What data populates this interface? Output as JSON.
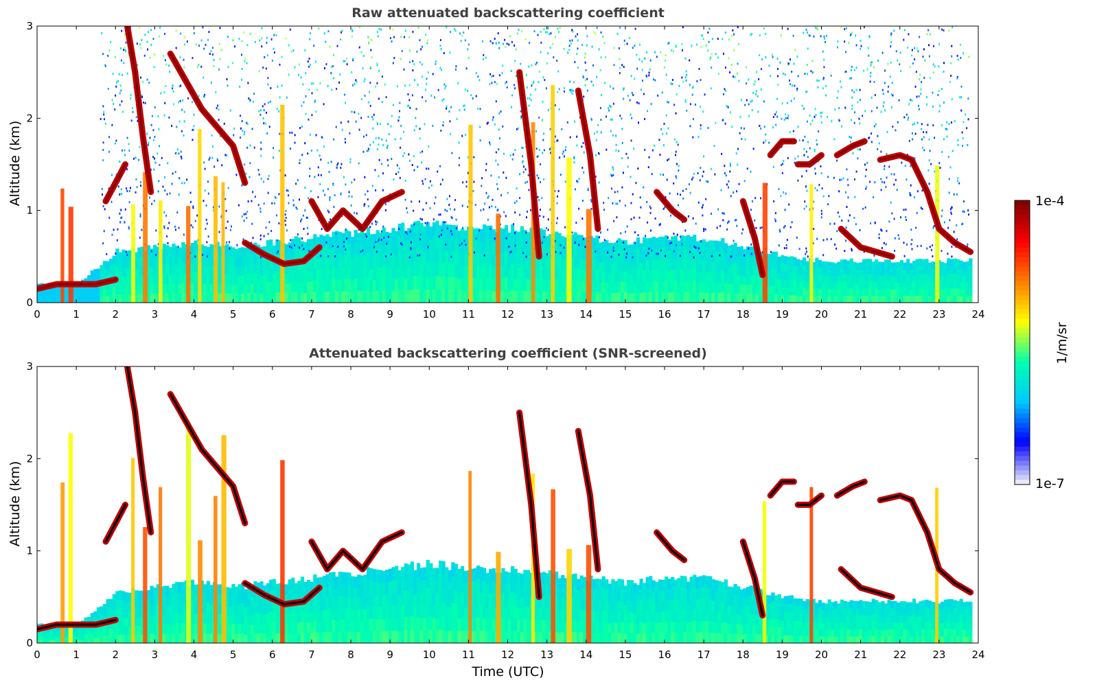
{
  "chart_data": [
    {
      "type": "heatmap",
      "title": "Raw attenuated backscattering coefficient",
      "xlabel": "",
      "ylabel": "Altitude (km)",
      "xlim": [
        0,
        24
      ],
      "ylim": [
        0,
        3
      ],
      "xticks": [
        "0",
        "1",
        "2",
        "3",
        "4",
        "5",
        "6",
        "7",
        "8",
        "9",
        "10",
        "11",
        "12",
        "13",
        "14",
        "15",
        "16",
        "17",
        "18",
        "19",
        "20",
        "21",
        "22",
        "23",
        "24"
      ],
      "yticks": [
        "0",
        "1",
        "2",
        "3"
      ],
      "screening": "none",
      "boundary_layer_top_km": [
        [
          0,
          0.2
        ],
        [
          1,
          0.2
        ],
        [
          2,
          0.55
        ],
        [
          3,
          0.6
        ],
        [
          4,
          0.65
        ],
        [
          5,
          0.6
        ],
        [
          6,
          0.65
        ],
        [
          7,
          0.7
        ],
        [
          8,
          0.75
        ],
        [
          9,
          0.8
        ],
        [
          10,
          0.85
        ],
        [
          11,
          0.8
        ],
        [
          12,
          0.8
        ],
        [
          13,
          0.75
        ],
        [
          14,
          0.7
        ],
        [
          15,
          0.65
        ],
        [
          16,
          0.7
        ],
        [
          17,
          0.7
        ],
        [
          18,
          0.6
        ],
        [
          19,
          0.5
        ],
        [
          20,
          0.45
        ],
        [
          21,
          0.45
        ],
        [
          22,
          0.45
        ],
        [
          23,
          0.45
        ],
        [
          23.8,
          0.45
        ]
      ],
      "cloud_layers": [
        {
          "points": [
            [
              0,
              0.15
            ],
            [
              0.5,
              0.2
            ],
            [
              1,
              0.2
            ],
            [
              1.5,
              0.2
            ],
            [
              2,
              0.25
            ]
          ]
        },
        {
          "points": [
            [
              1.75,
              1.1
            ],
            [
              2.0,
              1.3
            ],
            [
              2.25,
              1.5
            ]
          ]
        },
        {
          "points": [
            [
              2.3,
              3.0
            ],
            [
              2.5,
              2.5
            ],
            [
              2.7,
              1.8
            ],
            [
              2.9,
              1.2
            ]
          ]
        },
        {
          "points": [
            [
              3.4,
              2.7
            ],
            [
              3.8,
              2.4
            ],
            [
              4.2,
              2.1
            ],
            [
              4.6,
              1.9
            ],
            [
              5.0,
              1.7
            ],
            [
              5.3,
              1.3
            ]
          ]
        },
        {
          "points": [
            [
              5.3,
              0.65
            ],
            [
              5.8,
              0.52
            ],
            [
              6.3,
              0.42
            ],
            [
              6.8,
              0.45
            ],
            [
              7.2,
              0.6
            ]
          ]
        },
        {
          "points": [
            [
              7.0,
              1.1
            ],
            [
              7.4,
              0.8
            ],
            [
              7.8,
              1.0
            ],
            [
              8.3,
              0.8
            ],
            [
              8.8,
              1.1
            ],
            [
              9.3,
              1.2
            ]
          ]
        },
        {
          "points": [
            [
              12.3,
              2.5
            ],
            [
              12.6,
              1.5
            ],
            [
              12.8,
              0.5
            ]
          ]
        },
        {
          "points": [
            [
              13.8,
              2.3
            ],
            [
              14.1,
              1.6
            ],
            [
              14.3,
              0.8
            ]
          ]
        },
        {
          "points": [
            [
              15.8,
              1.2
            ],
            [
              16.2,
              1.0
            ],
            [
              16.5,
              0.9
            ]
          ]
        },
        {
          "points": [
            [
              18.0,
              1.1
            ],
            [
              18.3,
              0.7
            ],
            [
              18.5,
              0.3
            ]
          ]
        },
        {
          "points": [
            [
              18.7,
              1.6
            ],
            [
              19.0,
              1.75
            ],
            [
              19.3,
              1.75
            ]
          ]
        },
        {
          "points": [
            [
              19.4,
              1.5
            ],
            [
              19.7,
              1.5
            ],
            [
              20.0,
              1.6
            ]
          ]
        },
        {
          "points": [
            [
              20.4,
              1.6
            ],
            [
              20.8,
              1.7
            ],
            [
              21.1,
              1.75
            ]
          ]
        },
        {
          "points": [
            [
              21.5,
              1.55
            ],
            [
              22.0,
              1.6
            ],
            [
              22.3,
              1.55
            ],
            [
              22.7,
              1.2
            ],
            [
              23.0,
              0.8
            ],
            [
              23.4,
              0.65
            ],
            [
              23.8,
              0.55
            ]
          ]
        },
        {
          "points": [
            [
              20.5,
              0.8
            ],
            [
              21.0,
              0.6
            ],
            [
              21.4,
              0.55
            ],
            [
              21.8,
              0.5
            ]
          ]
        }
      ],
      "vertical_plumes_hours": [
        0.6,
        0.8,
        2.4,
        2.7,
        3.1,
        3.8,
        4.1,
        4.5,
        4.7,
        6.2,
        11.0,
        11.7,
        12.6,
        13.1,
        13.5,
        14.0,
        18.5,
        19.7,
        22.9
      ]
    },
    {
      "type": "heatmap",
      "title": "Attenuated backscattering coefficient (SNR-screened)",
      "xlabel": "Time (UTC)",
      "ylabel": "Altitude (km)",
      "xlim": [
        0,
        24
      ],
      "ylim": [
        0,
        3
      ],
      "xticks": [
        "0",
        "1",
        "2",
        "3",
        "4",
        "5",
        "6",
        "7",
        "8",
        "9",
        "10",
        "11",
        "12",
        "13",
        "14",
        "15",
        "16",
        "17",
        "18",
        "19",
        "20",
        "21",
        "22",
        "23",
        "24"
      ],
      "yticks": [
        "0",
        "1",
        "2",
        "3"
      ],
      "screening": "snr"
    }
  ],
  "colorbar": {
    "label": "1/m/sr",
    "tick_max": "1e-4",
    "tick_min": "1e-7",
    "colormap": [
      "#e8e8f8",
      "#0000ff",
      "#00c8ff",
      "#00ffb0",
      "#ffff00",
      "#ff8000",
      "#ff0000",
      "#800000"
    ]
  }
}
